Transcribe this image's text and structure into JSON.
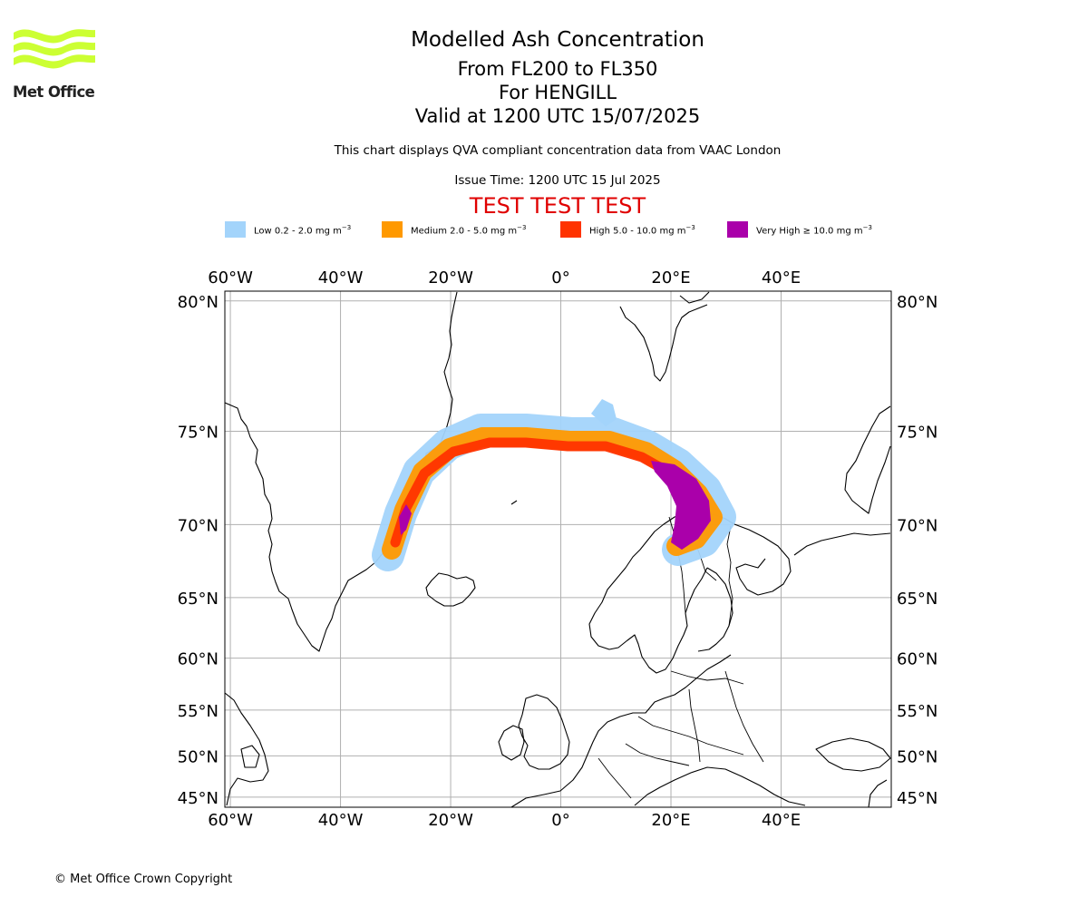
{
  "logo": {
    "name": "Met Office",
    "stripe_color": "#ccff33"
  },
  "header": {
    "title": "Modelled Ash Concentration",
    "levels": "From FL200 to FL350",
    "volcano": "For HENGILL",
    "valid": "Valid at 1200 UTC 15/07/2025",
    "compliance": "This chart displays QVA compliant concentration data from VAAC London",
    "issue_time": "Issue Time: 1200 UTC 15 Jul 2025",
    "test_banner": "TEST TEST TEST",
    "test_color": "#e00000"
  },
  "legend": {
    "unit_prefix": "mg m",
    "unit_exponent": "−3",
    "items": [
      {
        "label": "Low 0.2 - 2.0",
        "color": "#a3d4fb"
      },
      {
        "label": "Medium 2.0 - 5.0",
        "color": "#ff9900"
      },
      {
        "label": "High 5.0 - 10.0",
        "color": "#ff3300"
      },
      {
        "label": "Very High  ≥  10.0",
        "color": "#aa00aa"
      }
    ]
  },
  "map": {
    "lon_ticks": [
      "60°W",
      "40°W",
      "20°W",
      "0°",
      "20°E",
      "40°E"
    ],
    "lat_ticks": [
      "80°N",
      "75°N",
      "70°N",
      "65°N",
      "60°N",
      "55°N",
      "50°N",
      "45°N"
    ],
    "lon_values": [
      -60,
      -40,
      -20,
      0,
      20,
      40
    ],
    "lat_values": [
      80,
      75,
      70,
      65,
      60,
      55,
      50,
      45
    ],
    "lon_range": [
      -61,
      60
    ],
    "lat_range": [
      43.7,
      80.3
    ]
  },
  "footer": {
    "copyright": "© Met Office Crown Copyright"
  }
}
